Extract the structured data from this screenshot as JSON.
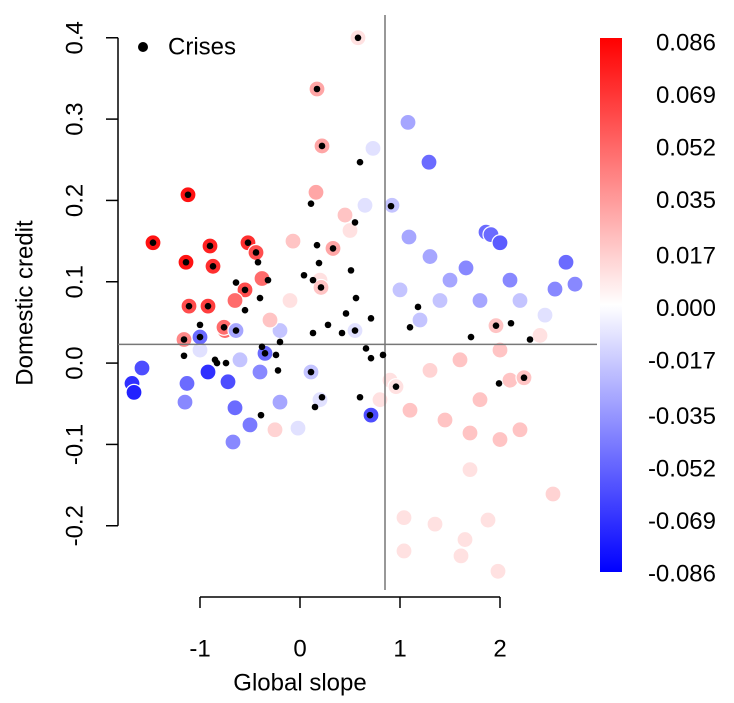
{
  "chart_data": {
    "type": "scatter",
    "xlabel": "Global slope",
    "ylabel": "Domestic credit",
    "xlim": [
      -1.82,
      2.97
    ],
    "ylim": [
      -0.279,
      0.428
    ],
    "xticks": [
      -1,
      0,
      1,
      2
    ],
    "yticks": [
      -0.2,
      -0.1,
      {
        "value": 0,
        "label": "0.0"
      },
      0.1,
      0.2,
      0.3,
      0.4
    ],
    "hline": 0.023,
    "vline": 0.85,
    "legend": "topleft",
    "points": {
      "x": [
        -1.47,
        -1.12,
        -1.14,
        -0.9,
        -0.87,
        -0.52,
        -1.11,
        -0.92,
        -0.55,
        -0.38,
        0.17,
        0.22,
        0.58,
        0.16,
        -0.07,
        0.6,
        0.73,
        1.08,
        1.29,
        0.92,
        1.09,
        1.3,
        1.86,
        1.91,
        2.0,
        2.66,
        2.75,
        2.55,
        1.66,
        -1.68,
        -1.58,
        -1.66,
        -1.13,
        -0.92,
        -0.72,
        -0.65,
        -0.5,
        -0.67,
        -1.15,
        -0.4,
        -0.2,
        -0.02,
        0.1,
        0.5,
        0.78,
        1.04,
        1.35,
        1.88,
        1.65,
        1.04,
        1.98,
        1.61,
        2.53,
        2.2,
        2.0,
        1.7,
        1.45,
        1.1,
        1.3,
        1.6,
        2.0,
        2.4,
        2.45,
        2.2,
        1.8,
        1.4,
        1.2,
        1.0,
        1.5,
        2.1,
        0.9,
        0.8,
        0.4,
        0.2,
        -0.2,
        -0.1,
        0.2,
        0.4,
        0.5,
        0.45,
        0.65,
        -0.75,
        -0.6,
        -1.0,
        -0.25,
        1.8,
        2.1,
        1.7,
        -0.65,
        -0.3,
        0.6,
        1.0,
        -1.16,
        -1.0,
        -0.76,
        -0.64,
        -0.35,
        0.11,
        0.55,
        0.71,
        1.96,
        2.24,
        0.96,
        0.33,
        -0.44,
        0.21
      ],
      "y": [
        0.148,
        0.207,
        0.124,
        0.144,
        0.119,
        0.148,
        0.07,
        0.07,
        0.09,
        0.104,
        0.337,
        0.267,
        0.4,
        0.21,
        0.15,
        0.245,
        0.264,
        0.296,
        0.247,
        0.194,
        0.155,
        0.131,
        0.161,
        0.158,
        0.148,
        0.124,
        0.097,
        0.091,
        0.117,
        -0.025,
        -0.006,
        -0.036,
        -0.025,
        -0.011,
        -0.023,
        -0.055,
        -0.076,
        -0.097,
        -0.048,
        -0.011,
        -0.048,
        -0.08,
        -0.152,
        -0.153,
        -0.119,
        -0.19,
        -0.198,
        -0.193,
        -0.217,
        -0.231,
        -0.256,
        -0.237,
        -0.161,
        -0.082,
        -0.094,
        -0.086,
        -0.07,
        -0.058,
        -0.009,
        0.004,
        0.016,
        0.034,
        0.059,
        0.077,
        0.077,
        0.077,
        0.053,
        0.09,
        0.102,
        0.102,
        -0.021,
        -0.045,
        -0.07,
        -0.045,
        0.04,
        0.077,
        0.102,
        0.126,
        0.163,
        0.182,
        0.194,
        0.04,
        0.004,
        0.016,
        -0.082,
        -0.045,
        -0.021,
        -0.131,
        0.077,
        0.053,
        0.04,
        0.028,
        0.029,
        0.032,
        0.044,
        0.04,
        0.012,
        -0.011,
        0.04,
        -0.064,
        0.046,
        -0.018,
        -0.029,
        0.141,
        0.136,
        0.093
      ],
      "c": [
        0.08,
        0.08,
        0.08,
        0.075,
        0.07,
        0.07,
        0.06,
        0.065,
        0.06,
        0.05,
        0.03,
        0.03,
        0.01,
        0.03,
        0.02,
        0.0,
        -0.01,
        -0.03,
        -0.05,
        -0.02,
        -0.03,
        -0.03,
        -0.05,
        -0.05,
        -0.055,
        -0.05,
        -0.04,
        -0.04,
        -0.04,
        -0.07,
        -0.06,
        -0.075,
        -0.05,
        -0.07,
        -0.06,
        -0.05,
        -0.045,
        -0.04,
        -0.04,
        -0.04,
        -0.03,
        -0.01,
        0.0,
        0.0,
        0.0,
        0.01,
        0.01,
        0.01,
        0.01,
        0.01,
        0.01,
        0.01,
        0.015,
        0.02,
        0.02,
        0.02,
        0.02,
        0.02,
        0.015,
        0.02,
        0.02,
        0.01,
        -0.01,
        -0.02,
        -0.03,
        -0.02,
        -0.02,
        -0.02,
        -0.03,
        -0.04,
        0.01,
        0.01,
        0.0,
        -0.01,
        -0.02,
        0.01,
        0.01,
        0.0,
        0.01,
        0.02,
        -0.01,
        0.05,
        -0.02,
        -0.01,
        0.015,
        0.02,
        0.02,
        0.01,
        0.05,
        0.02,
        0.0,
        0.0,
        0.04,
        -0.05,
        0.05,
        -0.03,
        -0.05,
        -0.02,
        -0.01,
        -0.06,
        0.02,
        0.02,
        0.01,
        0.03,
        0.06,
        0.02
      ]
    },
    "crises": {
      "name": "Crises",
      "color": "#000000",
      "x": [
        0.58,
        0.17,
        0.22,
        0.6,
        -1.12,
        0.11,
        0.91,
        0.55,
        -1.47,
        -0.9,
        -0.52,
        0.17,
        0.33,
        -0.44,
        -1.14,
        -0.87,
        -0.42,
        0.19,
        0.04,
        -0.32,
        0.51,
        0.13,
        0.21,
        -0.55,
        -0.64,
        0.56,
        -1.11,
        -0.92,
        -0.4,
        -0.55,
        0.71,
        1.18,
        0.46,
        -1.0,
        -0.76,
        -0.64,
        0.28,
        0.55,
        1.1,
        2.11,
        1.96,
        -1.16,
        -1.0,
        -0.2,
        0.13,
        0.42,
        1.71,
        2.3,
        -0.38,
        0.66,
        0.83,
        -0.35,
        -0.24,
        -0.85,
        -0.74,
        -1.16,
        0.71,
        1.99,
        2.24,
        0.96,
        -0.22,
        0.11,
        0.6,
        0.22,
        0.15,
        -0.39,
        0.7,
        -0.83
      ],
      "y": [
        0.4,
        0.337,
        0.267,
        0.247,
        0.207,
        0.196,
        0.193,
        0.173,
        0.148,
        0.144,
        0.148,
        0.145,
        0.141,
        0.136,
        0.124,
        0.119,
        0.124,
        0.123,
        0.108,
        0.102,
        0.114,
        0.102,
        0.093,
        0.09,
        0.099,
        0.08,
        0.07,
        0.07,
        0.08,
        0.065,
        0.055,
        0.069,
        0.061,
        0.047,
        0.044,
        0.04,
        0.047,
        0.04,
        0.044,
        0.049,
        0.046,
        0.029,
        0.032,
        0.026,
        0.037,
        0.037,
        0.032,
        0.029,
        0.02,
        0.018,
        0.01,
        0.012,
        0.01,
        0.004,
        0.0,
        0.009,
        0.006,
        -0.025,
        -0.018,
        -0.029,
        -0.009,
        -0.011,
        -0.042,
        -0.042,
        -0.054,
        -0.064,
        -0.064,
        0.0
      ]
    },
    "colorbar": {
      "lim": [
        -0.086,
        0.086
      ],
      "colors": [
        "#0000ff",
        "#ffffff",
        "#ff0000"
      ],
      "ticks": [
        0.086,
        0.069,
        0.052,
        0.035,
        0.017,
        {
          "value": 0,
          "label": "0.000"
        },
        -0.017,
        -0.035,
        -0.052,
        -0.069,
        -0.086
      ]
    }
  }
}
